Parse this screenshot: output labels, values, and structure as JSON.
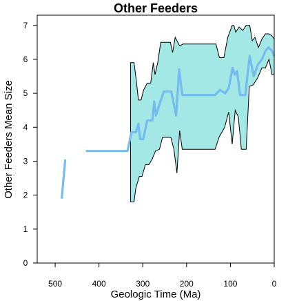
{
  "chart_data": {
    "type": "line",
    "title": "Other Feeders",
    "xlabel": "Geologic Time (Ma)",
    "ylabel": "Other Feeders Mean Size",
    "xlim": [
      541,
      0
    ],
    "ylim": [
      0,
      7.3
    ],
    "x_ticks": [
      500,
      400,
      300,
      200,
      100,
      0
    ],
    "y_ticks": [
      0,
      1,
      2,
      3,
      4,
      5,
      6,
      7
    ],
    "grid": false,
    "legend": "none",
    "colors": {
      "mean_line": "#74bbf0",
      "ci_fill": "#a3e8e4",
      "ci_stroke": "#000000"
    },
    "series": [
      {
        "role": "mean",
        "segments": [
          [
            [
              485,
              1.9
            ],
            [
              477,
              3.05
            ]
          ],
          [
            [
              430,
              3.3
            ],
            [
              335,
              3.3
            ],
            [
              326,
              3.85
            ],
            [
              316,
              3.85
            ],
            [
              310,
              4.1
            ],
            [
              306,
              3.65
            ],
            [
              299,
              3.65
            ],
            [
              290,
              4.2
            ],
            [
              278,
              4.2
            ],
            [
              274,
              4.75
            ],
            [
              270,
              4.35
            ],
            [
              260,
              4.75
            ],
            [
              252,
              5.05
            ],
            [
              235,
              5.05
            ],
            [
              224,
              4.35
            ],
            [
              217,
              5.7
            ],
            [
              210,
              4.95
            ],
            [
              135,
              4.95
            ],
            [
              124,
              5.1
            ],
            [
              112,
              5.0
            ],
            [
              104,
              5.15
            ],
            [
              95,
              5.75
            ],
            [
              90,
              5.55
            ],
            [
              85,
              5.65
            ],
            [
              78,
              4.95
            ],
            [
              66,
              4.95
            ],
            [
              56,
              6.1
            ],
            [
              47,
              5.5
            ],
            [
              37,
              5.85
            ],
            [
              28,
              6.0
            ],
            [
              20,
              6.25
            ],
            [
              13,
              6.35
            ],
            [
              5,
              6.25
            ],
            [
              0,
              6.1
            ]
          ]
        ]
      },
      {
        "role": "upper",
        "points": [
          [
            328,
            5.9
          ],
          [
            320,
            5.9
          ],
          [
            315,
            5.4
          ],
          [
            310,
            4.8
          ],
          [
            304,
            4.8
          ],
          [
            298,
            5.1
          ],
          [
            290,
            5.3
          ],
          [
            282,
            5.3
          ],
          [
            276,
            5.9
          ],
          [
            272,
            5.55
          ],
          [
            266,
            5.9
          ],
          [
            259,
            6.5
          ],
          [
            237,
            6.5
          ],
          [
            232,
            6.2
          ],
          [
            226,
            6.65
          ],
          [
            216,
            6.4
          ],
          [
            208,
            6.45
          ],
          [
            133,
            6.45
          ],
          [
            125,
            6.05
          ],
          [
            115,
            6.05
          ],
          [
            106,
            6.65
          ],
          [
            96,
            7.0
          ],
          [
            92,
            7.0
          ],
          [
            88,
            6.8
          ],
          [
            80,
            6.95
          ],
          [
            72,
            6.85
          ],
          [
            64,
            7.0
          ],
          [
            56,
            7.0
          ],
          [
            50,
            6.55
          ],
          [
            44,
            6.65
          ],
          [
            36,
            6.35
          ],
          [
            28,
            6.6
          ],
          [
            20,
            6.75
          ],
          [
            12,
            6.75
          ],
          [
            6,
            6.7
          ],
          [
            0,
            6.6
          ]
        ]
      },
      {
        "role": "lower",
        "points": [
          [
            328,
            1.8
          ],
          [
            320,
            1.8
          ],
          [
            316,
            2.2
          ],
          [
            308,
            2.55
          ],
          [
            302,
            2.55
          ],
          [
            294,
            2.9
          ],
          [
            286,
            2.9
          ],
          [
            279,
            3.05
          ],
          [
            271,
            3.3
          ],
          [
            262,
            3.35
          ],
          [
            255,
            3.7
          ],
          [
            236,
            3.7
          ],
          [
            229,
            3.35
          ],
          [
            222,
            2.65
          ],
          [
            216,
            3.9
          ],
          [
            210,
            3.35
          ],
          [
            135,
            3.35
          ],
          [
            126,
            3.7
          ],
          [
            113,
            4.0
          ],
          [
            104,
            4.45
          ],
          [
            96,
            3.5
          ],
          [
            89,
            4.5
          ],
          [
            82,
            4.3
          ],
          [
            75,
            3.35
          ],
          [
            64,
            3.35
          ],
          [
            57,
            5.2
          ],
          [
            48,
            5.25
          ],
          [
            38,
            5.45
          ],
          [
            28,
            5.75
          ],
          [
            20,
            5.75
          ],
          [
            12,
            6.0
          ],
          [
            5,
            5.55
          ],
          [
            0,
            5.55
          ]
        ]
      }
    ]
  }
}
